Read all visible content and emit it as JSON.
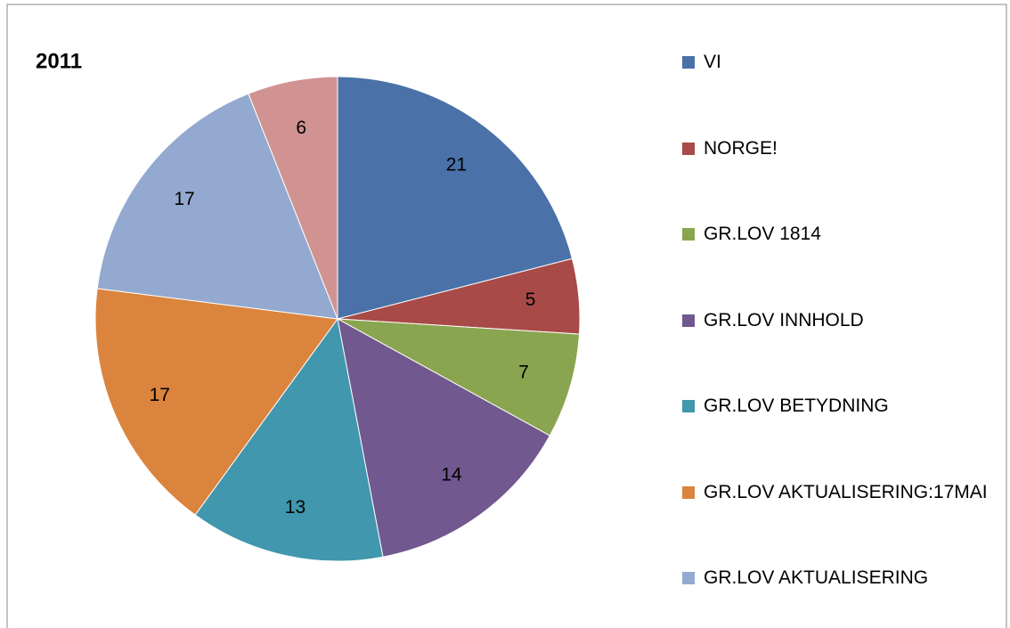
{
  "chart_data": {
    "type": "pie",
    "title": "2011",
    "categories": [
      "VI",
      "NORGE!",
      "GR.LOV 1814",
      "GR.LOV INNHOLD",
      "GR.LOV BETYDNING",
      "GR.LOV AKTUALISERING:17MAI",
      "GR.LOV AKTUALISERING",
      null
    ],
    "values": [
      21,
      5,
      7,
      14,
      13,
      17,
      17,
      6
    ],
    "colors": [
      "#4a72a8",
      "#a84a48",
      "#8aa54f",
      "#71588f",
      "#4197ad",
      "#db843d",
      "#93a9cf",
      "#d09392"
    ],
    "legend": "right"
  }
}
